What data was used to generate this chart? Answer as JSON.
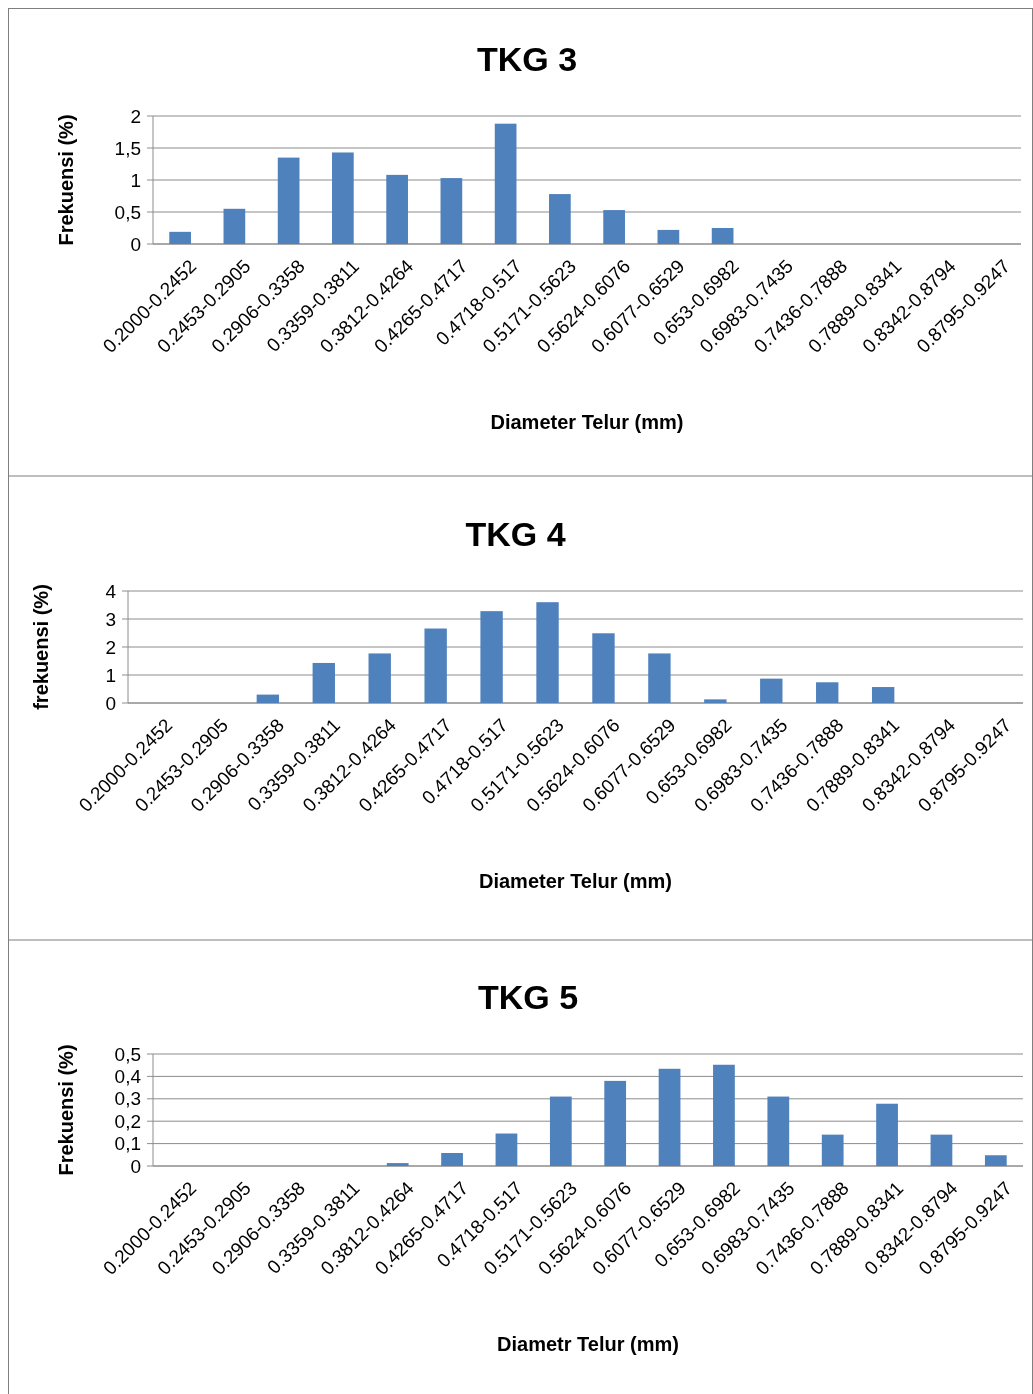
{
  "chart_data": [
    {
      "type": "bar",
      "title": "TKG 3",
      "xlabel": "Diameter  Telur (mm)",
      "ylabel": "Frekuensi (%)",
      "categories": [
        "0.2000-0.2452",
        "0.2453-0.2905",
        "0.2906-0.3358",
        "0.3359-0.3811",
        "0.3812-0.4264",
        "0.4265-0.4717",
        "0.4718-0.517",
        "0.5171-0.5623",
        "0.5624-0.6076",
        "0.6077-0.6529",
        "0.653-0.6982",
        "0.6983-0.7435",
        "0.7436-0.7888",
        "0.7889-0.8341",
        "0.8342-0.8794",
        "0.8795-0.9247"
      ],
      "values": [
        0.19,
        0.55,
        1.35,
        1.43,
        1.08,
        1.03,
        1.88,
        0.78,
        0.53,
        0.22,
        0.25,
        0,
        0,
        0,
        0,
        0
      ],
      "color": "#4f81bd",
      "ylim": [
        0,
        2
      ],
      "yticks": [
        0,
        {
          "value": 0.5,
          "label": "0,5"
        },
        1,
        {
          "value": 1.5,
          "label": "1,5"
        },
        2
      ],
      "grid": "y"
    },
    {
      "type": "bar",
      "title": "TKG 4",
      "xlabel": "Diameter Telur (mm)",
      "ylabel": "frekuensi (%)",
      "categories": [
        "0.2000-0.2452",
        "0.2453-0.2905",
        "0.2906-0.3358",
        "0.3359-0.3811",
        "0.3812-0.4264",
        "0.4265-0.4717",
        "0.4718-0.517",
        "0.5171-0.5623",
        "0.5624-0.6076",
        "0.6077-0.6529",
        "0.653-0.6982",
        "0.6983-0.7435",
        "0.7436-0.7888",
        "0.7889-0.8341",
        "0.8342-0.8794",
        "0.8795-0.9247"
      ],
      "values": [
        0,
        0,
        0.3,
        1.43,
        1.77,
        2.66,
        3.28,
        3.6,
        2.49,
        1.77,
        0.13,
        0.87,
        0.74,
        0.57,
        0,
        0
      ],
      "color": "#4f81bd",
      "ylim": [
        0,
        4
      ],
      "yticks": [
        0,
        1,
        2,
        3,
        4
      ],
      "grid": "y"
    },
    {
      "type": "bar",
      "title": "TKG 5",
      "xlabel": "Diametr Telur (mm)",
      "ylabel": "Frekuensi (%)",
      "categories": [
        "0.2000-0.2452",
        "0.2453-0.2905",
        "0.2906-0.3358",
        "0.3359-0.3811",
        "0.3812-0.4264",
        "0.4265-0.4717",
        "0.4718-0.517",
        "0.5171-0.5623",
        "0.5624-0.6076",
        "0.6077-0.6529",
        "0.653-0.6982",
        "0.6983-0.7435",
        "0.7436-0.7888",
        "0.7889-0.8341",
        "0.8342-0.8794",
        "0.8795-0.9247"
      ],
      "values": [
        0,
        0,
        0,
        0,
        0.013,
        0.058,
        0.145,
        0.31,
        0.38,
        0.434,
        0.452,
        0.31,
        0.14,
        0.278,
        0.14,
        0.048
      ],
      "color": "#4f81bd",
      "ylim": [
        0,
        0.5
      ],
      "yticks": [
        0,
        {
          "value": 0.1,
          "label": "0,1"
        },
        {
          "value": 0.2,
          "label": "0,2"
        },
        {
          "value": 0.3,
          "label": "0,3"
        },
        {
          "value": 0.4,
          "label": "0,4"
        },
        {
          "value": 0.5,
          "label": "0,5"
        }
      ],
      "grid": "y"
    }
  ]
}
